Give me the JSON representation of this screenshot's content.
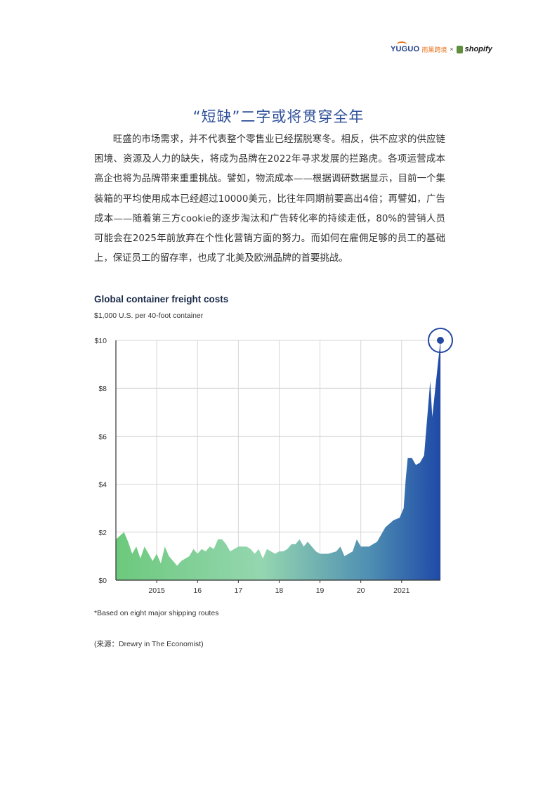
{
  "header": {
    "brand_yuguo": "YUGUO",
    "brand_yuguo_cn": "雨果跨境",
    "brand_times": "×",
    "brand_shopify": "shopify",
    "brand_colors": {
      "yuguo": "#1f3c8c",
      "yuguo_cn": "#e8731d",
      "shopify_bag": "#5e8e3e"
    }
  },
  "section": {
    "title": "“短缺”二字或将贯穿全年",
    "body": "旺盛的市场需求，并不代表整个零售业已经摆脱寒冬。相反，供不应求的供应链困境、资源及人力的缺失，将成为品牌在2022年寻求发展的拦路虎。各项运营成本高企也将为品牌带来重重挑战。譬如，物流成本——根据调研数据显示，目前一个集装箱的平均使用成本已经超过10000美元，比往年同期前要高出4倍；再譬如，广告成本——随着第三方cookie的逐步淘汰和广告转化率的持续走低，80%的营销人员可能会在2025年前放弃在个性化营销方面的努力。而如何在雇佣足够的员工的基础上，保证员工的留存率，也成了北美及欧洲品牌的首要挑战。"
  },
  "chart": {
    "title": "Global container freight costs",
    "subtitle": "$1,000 U.S. per 40-foot container",
    "footnote": "*Based on eight major shipping routes",
    "source": "(来源：Drewry in The Economist)"
  },
  "chart_data": {
    "type": "area",
    "title": "Global container freight costs",
    "subtitle": "$1,000 U.S. per 40-foot container",
    "xlabel": "",
    "ylabel": "",
    "ylim": [
      0,
      10
    ],
    "xlim": [
      2014.0,
      2021.95
    ],
    "yticks": [
      0,
      2,
      4,
      6,
      8,
      10
    ],
    "ytick_labels": [
      "$0",
      "$2",
      "$4",
      "$6",
      "$8",
      "$10"
    ],
    "xticks": [
      2015,
      2016,
      2017,
      2018,
      2019,
      2020,
      2021
    ],
    "xtick_labels": [
      "2015",
      "16",
      "17",
      "18",
      "19",
      "20",
      "2021"
    ],
    "grid": true,
    "gradient_colors": [
      "#6cc97c",
      "#95d6b0",
      "#4f8fb2",
      "#1f4aa8"
    ],
    "highlight_color": "#2448a0",
    "highlight_point": {
      "x": 2021.95,
      "y": 10.0
    },
    "x": [
      2014.0,
      2014.2,
      2014.3,
      2014.4,
      2014.5,
      2014.6,
      2014.7,
      2014.8,
      2014.9,
      2015.0,
      2015.1,
      2015.2,
      2015.3,
      2015.5,
      2015.6,
      2015.8,
      2015.9,
      2016.0,
      2016.1,
      2016.2,
      2016.3,
      2016.4,
      2016.5,
      2016.6,
      2016.7,
      2016.8,
      2016.9,
      2017.0,
      2017.1,
      2017.2,
      2017.3,
      2017.4,
      2017.5,
      2017.6,
      2017.7,
      2017.8,
      2017.9,
      2018.0,
      2018.1,
      2018.2,
      2018.3,
      2018.4,
      2018.5,
      2018.6,
      2018.7,
      2018.8,
      2018.9,
      2019.0,
      2019.2,
      2019.4,
      2019.5,
      2019.6,
      2019.7,
      2019.8,
      2019.9,
      2020.0,
      2020.2,
      2020.4,
      2020.6,
      2020.8,
      2020.95,
      2021.05,
      2021.1,
      2021.15,
      2021.25,
      2021.35,
      2021.45,
      2021.55,
      2021.7,
      2021.75,
      2021.95
    ],
    "values": [
      1.7,
      2.0,
      1.6,
      1.1,
      1.4,
      0.9,
      1.4,
      1.1,
      0.8,
      1.1,
      0.7,
      1.4,
      1.0,
      0.6,
      0.8,
      1.0,
      1.3,
      1.1,
      1.3,
      1.2,
      1.4,
      1.3,
      1.7,
      1.7,
      1.5,
      1.2,
      1.3,
      1.4,
      1.4,
      1.4,
      1.3,
      1.1,
      1.3,
      0.9,
      1.3,
      1.2,
      1.1,
      1.2,
      1.2,
      1.3,
      1.5,
      1.5,
      1.7,
      1.4,
      1.6,
      1.4,
      1.2,
      1.1,
      1.1,
      1.2,
      1.4,
      1.0,
      1.1,
      1.2,
      1.7,
      1.4,
      1.4,
      1.6,
      2.2,
      2.5,
      2.6,
      3.0,
      4.2,
      5.1,
      5.1,
      4.8,
      4.9,
      5.2,
      8.3,
      6.8,
      10.0
    ]
  }
}
